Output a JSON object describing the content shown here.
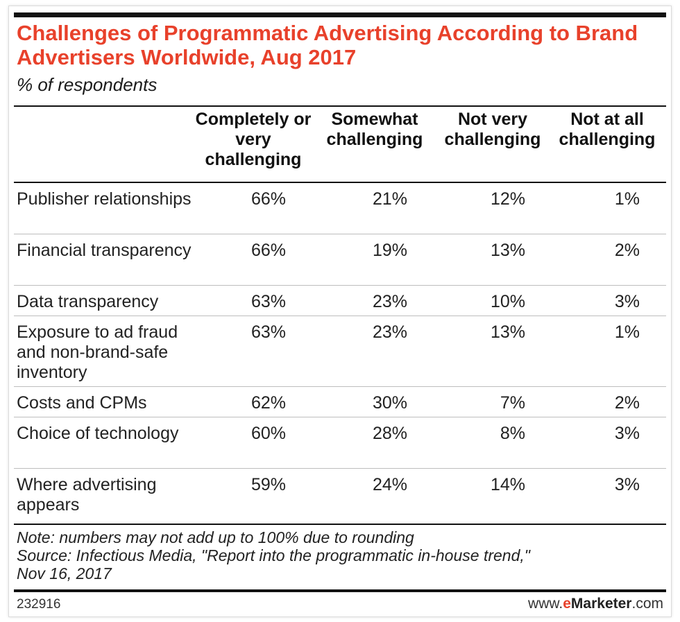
{
  "chart_data": {
    "type": "table",
    "title": "Challenges of Programmatic Advertising According to Brand Advertisers Worldwide, Aug 2017",
    "subtitle": "% of respondents",
    "columns": [
      "Completely or very challenging",
      "Somewhat challenging",
      "Not very challenging",
      "Not at all challenging"
    ],
    "rows": [
      {
        "label": "Publisher relationships",
        "values": [
          "66%",
          "21%",
          "12%",
          "1%"
        ]
      },
      {
        "label": "Financial transparency",
        "values": [
          "66%",
          "19%",
          "13%",
          "2%"
        ]
      },
      {
        "label": "Data transparency",
        "values": [
          "63%",
          "23%",
          "10%",
          "3%"
        ]
      },
      {
        "label": "Exposure to ad fraud and non-brand-safe inventory",
        "values": [
          "63%",
          "23%",
          "13%",
          "1%"
        ]
      },
      {
        "label": "Costs and CPMs",
        "values": [
          "62%",
          "30%",
          "7%",
          "2%"
        ]
      },
      {
        "label": "Choice of technology",
        "values": [
          "60%",
          "28%",
          "8%",
          "3%"
        ]
      },
      {
        "label": "Where advertising appears",
        "values": [
          "59%",
          "24%",
          "14%",
          "3%"
        ]
      }
    ],
    "note": "Note: numbers may not add up to 100% due to rounding",
    "source": "Source: Infectious Media, \"Report into the programmatic in-house trend,\"",
    "source_date": "Nov 16, 2017"
  },
  "footer": {
    "chart_id": "232916",
    "brand_prefix": "www.",
    "brand_e": "e",
    "brand_name": "Marketer",
    "brand_suffix": ".com"
  },
  "colors": {
    "title": "#e8412b",
    "rule": "#111111",
    "row_separator": "#bdbdbd"
  }
}
